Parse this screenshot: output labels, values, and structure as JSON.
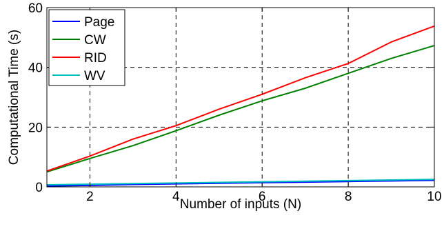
{
  "chart_data": {
    "type": "line",
    "title": "",
    "xlabel": "Number of inputs (N)",
    "ylabel": "Computational Time (s)",
    "xlim": [
      1,
      10
    ],
    "ylim": [
      0,
      60
    ],
    "xticks": [
      2,
      4,
      6,
      8,
      10
    ],
    "yticks": [
      0,
      20,
      40,
      60
    ],
    "grid": true,
    "legend_position": "top-left",
    "x": [
      1,
      2,
      3,
      4,
      5,
      6,
      7,
      8,
      9,
      10
    ],
    "series": [
      {
        "name": "Page",
        "color": "#0000ff",
        "values": [
          0.3,
          0.5,
          0.8,
          1.0,
          1.2,
          1.4,
          1.6,
          1.8,
          2.0,
          2.2
        ]
      },
      {
        "name": "CW",
        "color": "#008000",
        "values": [
          5.0,
          9.5,
          13.8,
          18.8,
          24.0,
          28.8,
          33.0,
          38.0,
          43.0,
          47.3
        ]
      },
      {
        "name": "RID",
        "color": "#ff0000",
        "values": [
          5.3,
          10.3,
          16.0,
          20.5,
          26.0,
          31.0,
          36.5,
          41.3,
          48.5,
          53.8
        ]
      },
      {
        "name": "WV",
        "color": "#00bfbf",
        "values": [
          0.7,
          0.9,
          1.1,
          1.3,
          1.5,
          1.7,
          1.9,
          2.1,
          2.3,
          2.5
        ]
      }
    ]
  }
}
